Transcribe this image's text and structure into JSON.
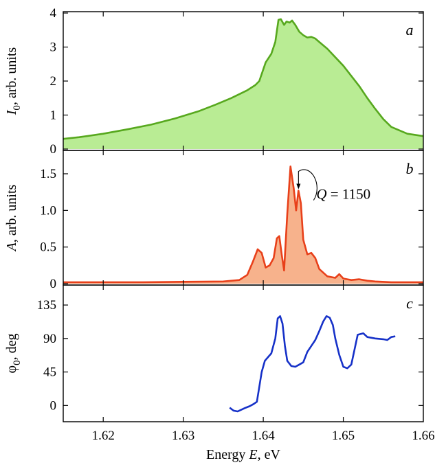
{
  "chart_data": [
    {
      "panel": "a",
      "type": "area",
      "panel_label": "a",
      "ylabel": "I₀, arb. units",
      "ylabel_main": "I",
      "ylabel_sub": "0",
      "ylabel_rest": ", arb. units",
      "xlim": [
        1.615,
        1.66
      ],
      "ylim": [
        0,
        4
      ],
      "yticks": [
        0,
        1,
        2,
        3,
        4
      ],
      "ytick_labels": [
        "0",
        "1",
        "2",
        "3",
        "4"
      ],
      "color": "#57a81e",
      "fill": "#b9ec94",
      "x": [
        1.615,
        1.617,
        1.62,
        1.623,
        1.626,
        1.629,
        1.632,
        1.634,
        1.636,
        1.638,
        1.639,
        1.6395,
        1.6403,
        1.641,
        1.6415,
        1.6419,
        1.6422,
        1.6426,
        1.6429,
        1.6433,
        1.6436,
        1.644,
        1.6445,
        1.645,
        1.6455,
        1.646,
        1.6465,
        1.647,
        1.648,
        1.649,
        1.65,
        1.651,
        1.652,
        1.653,
        1.654,
        1.655,
        1.656,
        1.658,
        1.66
      ],
      "y": [
        0.3,
        0.35,
        0.45,
        0.58,
        0.72,
        0.9,
        1.12,
        1.3,
        1.5,
        1.73,
        1.88,
        2.0,
        2.55,
        2.8,
        3.15,
        3.8,
        3.82,
        3.65,
        3.75,
        3.72,
        3.78,
        3.65,
        3.45,
        3.35,
        3.28,
        3.3,
        3.25,
        3.15,
        2.95,
        2.7,
        2.45,
        2.15,
        1.85,
        1.5,
        1.18,
        0.88,
        0.65,
        0.45,
        0.38
      ]
    },
    {
      "panel": "b",
      "type": "area",
      "panel_label": "b",
      "ylabel": "A, arb. units",
      "ylabel_main": "A",
      "ylabel_sub": "",
      "ylabel_rest": ", arb. units",
      "xlim": [
        1.615,
        1.66
      ],
      "ylim": [
        0,
        1.8
      ],
      "yticks": [
        0,
        0.5,
        1.0,
        1.5
      ],
      "ytick_labels": [
        "0",
        "0.5",
        "1.0",
        "1.5"
      ],
      "color": "#e8401a",
      "fill": "#f7b28c",
      "annotation": {
        "label_italic": "Q",
        "label_rest": " = 1150",
        "x": 1.6444,
        "y": 1.27
      },
      "x": [
        1.615,
        1.62,
        1.625,
        1.63,
        1.635,
        1.637,
        1.638,
        1.6387,
        1.6393,
        1.6398,
        1.6403,
        1.6408,
        1.6413,
        1.6417,
        1.642,
        1.6423,
        1.6426,
        1.643,
        1.6434,
        1.6438,
        1.6441,
        1.6444,
        1.6447,
        1.645,
        1.6455,
        1.646,
        1.6465,
        1.647,
        1.648,
        1.649,
        1.6495,
        1.65,
        1.651,
        1.652,
        1.653,
        1.654,
        1.656,
        1.658,
        1.66
      ],
      "y": [
        0.02,
        0.02,
        0.02,
        0.025,
        0.03,
        0.05,
        0.12,
        0.3,
        0.47,
        0.42,
        0.22,
        0.25,
        0.35,
        0.62,
        0.65,
        0.4,
        0.18,
        0.95,
        1.6,
        1.3,
        1.0,
        1.27,
        1.1,
        0.6,
        0.4,
        0.42,
        0.35,
        0.2,
        0.1,
        0.08,
        0.13,
        0.07,
        0.05,
        0.06,
        0.04,
        0.03,
        0.02,
        0.02,
        0.02
      ]
    },
    {
      "panel": "c",
      "type": "line",
      "panel_label": "c",
      "ylabel": "φ₀, deg",
      "ylabel_main": "φ",
      "ylabel_sub": "0",
      "ylabel_rest": ", deg",
      "xlim": [
        1.615,
        1.66
      ],
      "ylim": [
        -20,
        160
      ],
      "yticks": [
        0,
        45,
        90,
        135
      ],
      "ytick_labels": [
        "0",
        "45",
        "90",
        "135"
      ],
      "color": "#1631c8",
      "xlabel_main": "Energy ",
      "xlabel_italic": "E",
      "xlabel_rest": ", eV",
      "xticks": [
        1.62,
        1.63,
        1.64,
        1.65,
        1.66
      ],
      "xtick_labels": [
        "1.62",
        "1.63",
        "1.64",
        "1.65",
        "1.66"
      ],
      "x": [
        1.6358,
        1.6363,
        1.6368,
        1.6372,
        1.6378,
        1.6383,
        1.6388,
        1.6392,
        1.6395,
        1.6398,
        1.6402,
        1.6406,
        1.641,
        1.6415,
        1.6418,
        1.6421,
        1.6424,
        1.6427,
        1.643,
        1.6435,
        1.644,
        1.6445,
        1.645,
        1.6455,
        1.646,
        1.6465,
        1.647,
        1.6475,
        1.6479,
        1.6483,
        1.6487,
        1.649,
        1.6495,
        1.65,
        1.6505,
        1.651,
        1.6513,
        1.6518,
        1.6525,
        1.653,
        1.654,
        1.655,
        1.6555,
        1.656,
        1.6565
      ],
      "y": [
        -3,
        -7,
        -8,
        -6,
        -3,
        -1,
        2,
        5,
        25,
        45,
        60,
        65,
        70,
        90,
        117,
        120,
        110,
        80,
        60,
        53,
        52,
        55,
        58,
        72,
        80,
        88,
        100,
        113,
        120,
        118,
        108,
        90,
        68,
        52,
        50,
        55,
        70,
        95,
        97,
        92,
        90,
        89,
        88,
        92,
        93
      ]
    }
  ]
}
